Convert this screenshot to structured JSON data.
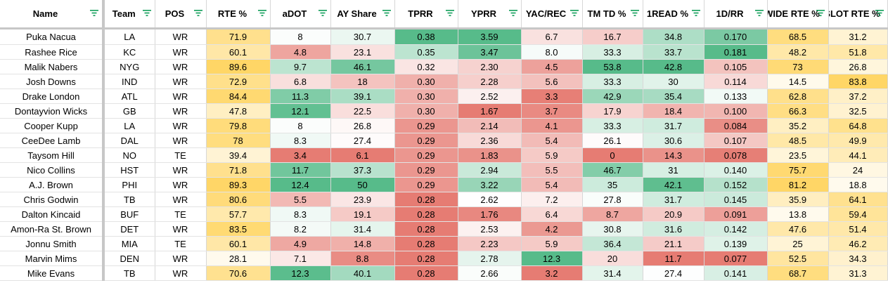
{
  "columns": [
    {
      "key": "name",
      "label": "Name"
    },
    {
      "key": "team",
      "label": "Team"
    },
    {
      "key": "pos",
      "label": "POS"
    },
    {
      "key": "rte",
      "label": "RTE %"
    },
    {
      "key": "adot",
      "label": "aDOT"
    },
    {
      "key": "ay",
      "label": "AY Share"
    },
    {
      "key": "tprr",
      "label": "TPRR"
    },
    {
      "key": "yprr",
      "label": "YPRR"
    },
    {
      "key": "yac",
      "label": "YAC/REC"
    },
    {
      "key": "tmtd",
      "label": "TM TD %"
    },
    {
      "key": "oneread",
      "label": "1READ %"
    },
    {
      "key": "firstdown",
      "label": "1D/RR"
    },
    {
      "key": "wide",
      "label": "WIDE RTE %"
    },
    {
      "key": "slot",
      "label": "SLOT RTE %"
    }
  ],
  "rows": [
    {
      "name": "Puka Nacua",
      "team": "LA",
      "pos": "WR",
      "rte": "71.9",
      "adot": "8",
      "ay": "30.7",
      "tprr": "0.38",
      "yprr": "3.59",
      "yac": "6.7",
      "tmtd": "16.7",
      "oneread": "34.8",
      "firstdown": "0.170",
      "wide": "68.5",
      "slot": "31.2"
    },
    {
      "name": "Rashee Rice",
      "team": "KC",
      "pos": "WR",
      "rte": "60.1",
      "adot": "4.8",
      "ay": "23.1",
      "tprr": "0.35",
      "yprr": "3.47",
      "yac": "8.0",
      "tmtd": "33.3",
      "oneread": "33.7",
      "firstdown": "0.181",
      "wide": "48.2",
      "slot": "51.8"
    },
    {
      "name": "Malik Nabers",
      "team": "NYG",
      "pos": "WR",
      "rte": "89.6",
      "adot": "9.7",
      "ay": "46.1",
      "tprr": "0.32",
      "yprr": "2.30",
      "yac": "4.5",
      "tmtd": "53.8",
      "oneread": "42.8",
      "firstdown": "0.105",
      "wide": "73",
      "slot": "26.8"
    },
    {
      "name": "Josh Downs",
      "team": "IND",
      "pos": "WR",
      "rte": "72.9",
      "adot": "6.8",
      "ay": "18",
      "tprr": "0.30",
      "yprr": "2.28",
      "yac": "5.6",
      "tmtd": "33.3",
      "oneread": "30",
      "firstdown": "0.114",
      "wide": "14.5",
      "slot": "83.8"
    },
    {
      "name": "Drake London",
      "team": "ATL",
      "pos": "WR",
      "rte": "84.4",
      "adot": "11.3",
      "ay": "39.1",
      "tprr": "0.30",
      "yprr": "2.52",
      "yac": "3.3",
      "tmtd": "42.9",
      "oneread": "35.4",
      "firstdown": "0.133",
      "wide": "62.8",
      "slot": "37.2"
    },
    {
      "name": "Dontayvion Wicks",
      "team": "GB",
      "pos": "WR",
      "rte": "47.8",
      "adot": "12.1",
      "ay": "22.5",
      "tprr": "0.30",
      "yprr": "1.67",
      "yac": "3.7",
      "tmtd": "17.9",
      "oneread": "18.4",
      "firstdown": "0.100",
      "wide": "66.3",
      "slot": "32.5"
    },
    {
      "name": "Cooper Kupp",
      "team": "LA",
      "pos": "WR",
      "rte": "79.8",
      "adot": "8",
      "ay": "26.8",
      "tprr": "0.29",
      "yprr": "2.14",
      "yac": "4.1",
      "tmtd": "33.3",
      "oneread": "31.7",
      "firstdown": "0.084",
      "wide": "35.2",
      "slot": "64.8"
    },
    {
      "name": "CeeDee Lamb",
      "team": "DAL",
      "pos": "WR",
      "rte": "78",
      "adot": "8.3",
      "ay": "27.4",
      "tprr": "0.29",
      "yprr": "2.36",
      "yac": "5.4",
      "tmtd": "26.1",
      "oneread": "30.6",
      "firstdown": "0.107",
      "wide": "48.5",
      "slot": "49.9"
    },
    {
      "name": "Taysom Hill",
      "team": "NO",
      "pos": "TE",
      "rte": "39.4",
      "adot": "3.4",
      "ay": "6.1",
      "tprr": "0.29",
      "yprr": "1.83",
      "yac": "5.9",
      "tmtd": "0",
      "oneread": "14.3",
      "firstdown": "0.078",
      "wide": "23.5",
      "slot": "44.1"
    },
    {
      "name": "Nico Collins",
      "team": "HST",
      "pos": "WR",
      "rte": "71.8",
      "adot": "11.7",
      "ay": "37.3",
      "tprr": "0.29",
      "yprr": "2.94",
      "yac": "5.5",
      "tmtd": "46.7",
      "oneread": "31",
      "firstdown": "0.140",
      "wide": "75.7",
      "slot": "24"
    },
    {
      "name": "A.J. Brown",
      "team": "PHI",
      "pos": "WR",
      "rte": "89.3",
      "adot": "12.4",
      "ay": "50",
      "tprr": "0.29",
      "yprr": "3.22",
      "yac": "5.4",
      "tmtd": "35",
      "oneread": "42.1",
      "firstdown": "0.152",
      "wide": "81.2",
      "slot": "18.8"
    },
    {
      "name": "Chris Godwin",
      "team": "TB",
      "pos": "WR",
      "rte": "80.6",
      "adot": "5.5",
      "ay": "23.9",
      "tprr": "0.28",
      "yprr": "2.62",
      "yac": "7.2",
      "tmtd": "27.8",
      "oneread": "31.7",
      "firstdown": "0.145",
      "wide": "35.9",
      "slot": "64.1"
    },
    {
      "name": "Dalton Kincaid",
      "team": "BUF",
      "pos": "TE",
      "rte": "57.7",
      "adot": "8.3",
      "ay": "19.1",
      "tprr": "0.28",
      "yprr": "1.76",
      "yac": "6.4",
      "tmtd": "8.7",
      "oneread": "20.9",
      "firstdown": "0.091",
      "wide": "13.8",
      "slot": "59.4"
    },
    {
      "name": "Amon-Ra St. Brown",
      "team": "DET",
      "pos": "WR",
      "rte": "83.5",
      "adot": "8.2",
      "ay": "31.4",
      "tprr": "0.28",
      "yprr": "2.53",
      "yac": "4.2",
      "tmtd": "30.8",
      "oneread": "31.6",
      "firstdown": "0.142",
      "wide": "47.6",
      "slot": "51.4"
    },
    {
      "name": "Jonnu Smith",
      "team": "MIA",
      "pos": "TE",
      "rte": "60.1",
      "adot": "4.9",
      "ay": "14.8",
      "tprr": "0.28",
      "yprr": "2.23",
      "yac": "5.9",
      "tmtd": "36.4",
      "oneread": "21.1",
      "firstdown": "0.139",
      "wide": "25",
      "slot": "46.2"
    },
    {
      "name": "Marvin Mims",
      "team": "DEN",
      "pos": "WR",
      "rte": "28.1",
      "adot": "7.1",
      "ay": "8.8",
      "tprr": "0.28",
      "yprr": "2.78",
      "yac": "12.3",
      "tmtd": "20",
      "oneread": "11.7",
      "firstdown": "0.077",
      "wide": "52.5",
      "slot": "34.3"
    },
    {
      "name": "Mike Evans",
      "team": "TB",
      "pos": "WR",
      "rte": "70.6",
      "adot": "12.3",
      "ay": "40.1",
      "tprr": "0.28",
      "yprr": "2.66",
      "yac": "3.2",
      "tmtd": "31.4",
      "oneread": "27.4",
      "firstdown": "0.141",
      "wide": "68.7",
      "slot": "31.3"
    }
  ],
  "colors": {
    "header_text": "#000000",
    "filter_icon": "#0f9d58",
    "gridline": "#d7d7d7",
    "frozen_divider": "#c7c7c7",
    "scale_green": "#57bb8a",
    "scale_yellow": "#ffd666",
    "scale_red": "#e67c73",
    "scale_white": "#ffffff"
  },
  "icons": {
    "filter": "filter-icon"
  }
}
